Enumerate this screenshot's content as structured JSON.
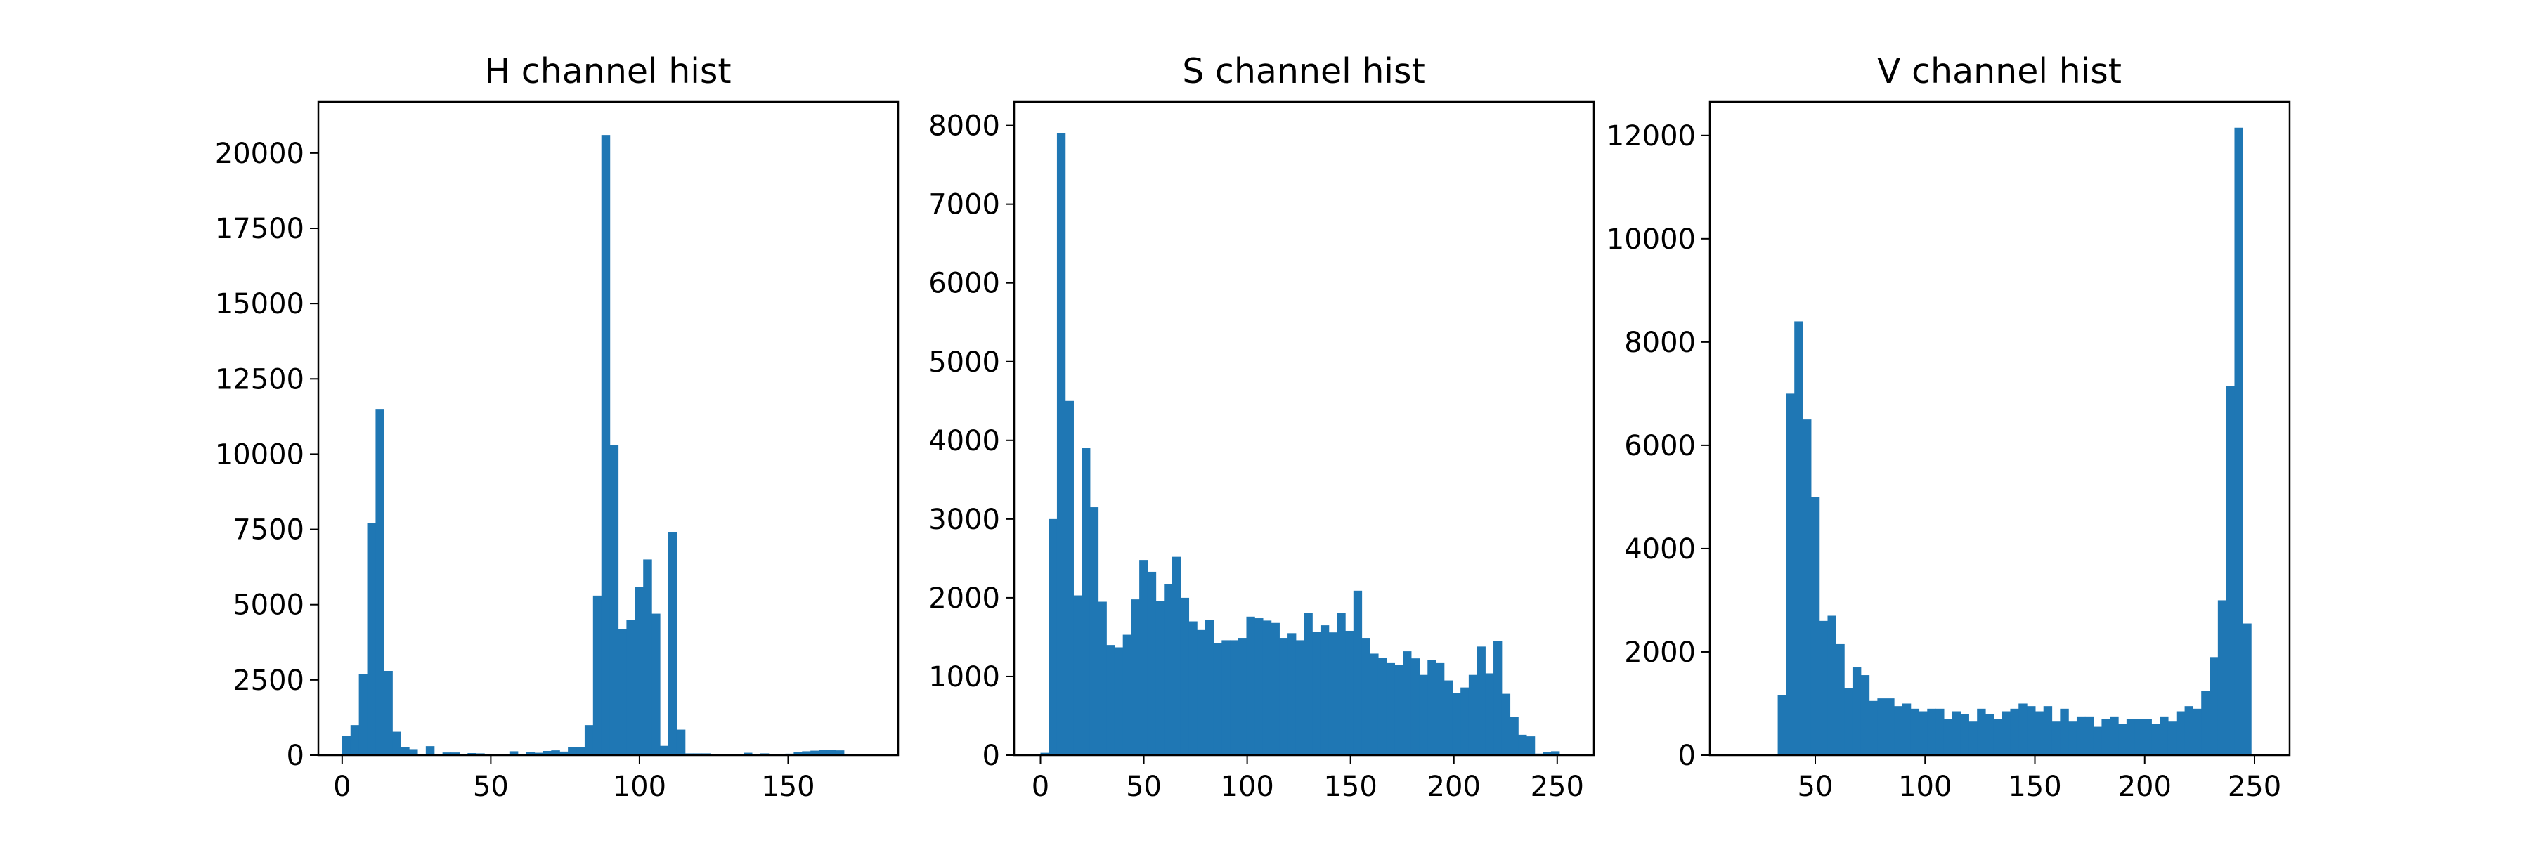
{
  "chart_data": [
    {
      "type": "bar",
      "title": "H channel hist",
      "xlabel": "",
      "ylabel": "",
      "xlim": [
        -8,
        187
      ],
      "ylim": [
        0,
        21700
      ],
      "xticks": [
        0,
        50,
        100,
        150
      ],
      "yticks": [
        0,
        2500,
        5000,
        7500,
        10000,
        12500,
        15000,
        17500,
        20000
      ],
      "bin_start": 0,
      "bin_width": 2.8125,
      "values": [
        650,
        1000,
        2700,
        7700,
        11500,
        2800,
        780,
        280,
        200,
        30,
        300,
        20,
        90,
        90,
        20,
        70,
        60,
        30,
        20,
        30,
        130,
        20,
        110,
        80,
        140,
        160,
        120,
        270,
        270,
        1000,
        5300,
        20600,
        10300,
        4200,
        4500,
        5600,
        6500,
        4700,
        310,
        7400,
        850,
        60,
        60,
        60,
        30,
        20,
        30,
        40,
        80,
        30,
        60,
        20,
        30,
        50,
        110,
        130,
        150,
        170,
        170,
        160,
        20,
        0,
        0,
        0
      ],
      "bar_color": "#1f77b4"
    },
    {
      "type": "bar",
      "title": "S channel hist",
      "xlabel": "",
      "ylabel": "",
      "xlim": [
        -12.75,
        267.75
      ],
      "ylim": [
        0,
        8300
      ],
      "xticks": [
        0,
        50,
        100,
        150,
        200,
        250
      ],
      "yticks": [
        0,
        1000,
        2000,
        3000,
        4000,
        5000,
        6000,
        7000,
        8000
      ],
      "bin_start": 0,
      "bin_width": 3.984375,
      "values": [
        30,
        3000,
        7900,
        4500,
        2030,
        3900,
        3150,
        1950,
        1400,
        1370,
        1530,
        1980,
        2480,
        2330,
        1960,
        2170,
        2520,
        2000,
        1700,
        1590,
        1720,
        1420,
        1460,
        1460,
        1490,
        1760,
        1740,
        1710,
        1680,
        1490,
        1550,
        1460,
        1810,
        1570,
        1650,
        1560,
        1810,
        1580,
        2090,
        1490,
        1290,
        1240,
        1170,
        1150,
        1320,
        1230,
        1020,
        1210,
        1170,
        950,
        790,
        860,
        1020,
        1380,
        1040,
        1450,
        780,
        490,
        260,
        240,
        20,
        40,
        50,
        0
      ],
      "bar_color": "#1f77b4"
    },
    {
      "type": "bar",
      "title": "V channel hist",
      "xlabel": "",
      "ylabel": "",
      "xlim": [
        2,
        266
      ],
      "ylim": [
        0,
        12650
      ],
      "xticks": [
        50,
        100,
        150,
        200,
        250
      ],
      "yticks": [
        0,
        2000,
        4000,
        6000,
        8000,
        10000,
        12000
      ],
      "bin_start": 14,
      "bin_width": 3.78125,
      "values": [
        0,
        0,
        0,
        0,
        5,
        1160,
        7000,
        8400,
        6500,
        5000,
        2600,
        2700,
        2150,
        1300,
        1700,
        1550,
        1050,
        1100,
        1100,
        950,
        1000,
        900,
        850,
        900,
        900,
        700,
        850,
        800,
        650,
        900,
        800,
        700,
        850,
        900,
        1000,
        950,
        850,
        950,
        650,
        900,
        650,
        750,
        750,
        550,
        700,
        750,
        600,
        700,
        700,
        700,
        600,
        750,
        650,
        850,
        950,
        900,
        1250,
        1900,
        3000,
        7150,
        12150,
        2550,
        0,
        0
      ],
      "bar_color": "#1f77b4"
    }
  ]
}
